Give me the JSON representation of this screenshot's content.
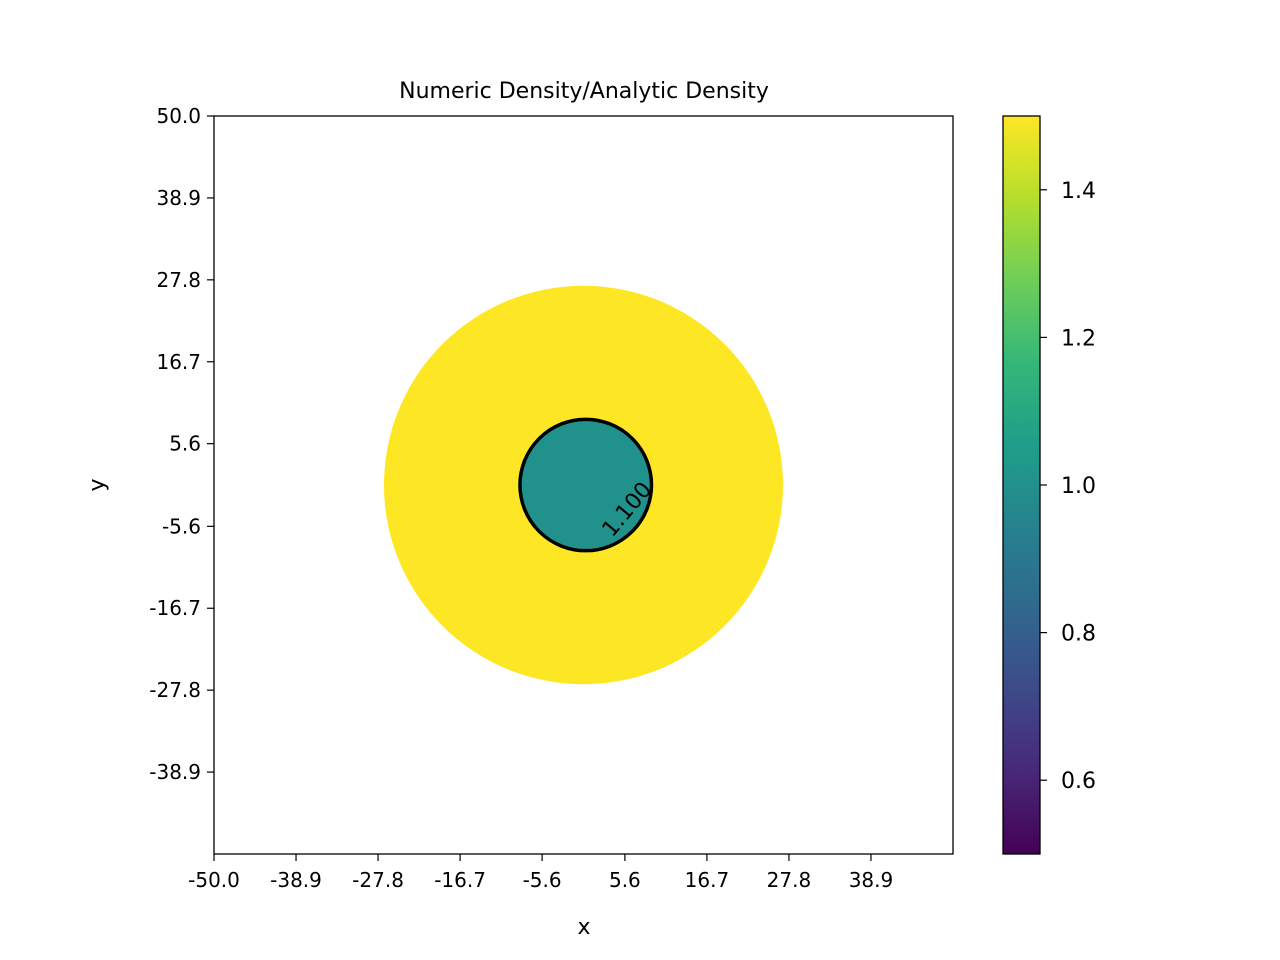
{
  "chart_data": {
    "type": "heatmap",
    "title": "Numeric Density/Analytic Density",
    "xlabel": "x",
    "ylabel": "y",
    "xlim": [
      -50.0,
      50.0
    ],
    "ylim": [
      -50.0,
      50.0
    ],
    "xticks": [
      "-50.0",
      "-38.9",
      "-27.8",
      "-16.7",
      "-5.6",
      "5.6",
      "16.7",
      "27.8",
      "38.9"
    ],
    "yticks": [
      "50.0",
      "38.9",
      "27.8",
      "16.7",
      "5.6",
      "-5.6",
      "-16.7",
      "-27.8",
      "-38.9"
    ],
    "grid": false,
    "colormap": "viridis",
    "colorbar": {
      "range": [
        0.5,
        1.5
      ],
      "ticks": [
        "0.6",
        "0.8",
        "1.0",
        "1.2",
        "1.4"
      ],
      "colors": [
        "#440154",
        "#482878",
        "#3e4a89",
        "#31688e",
        "#26828e",
        "#1f9e89",
        "#35b779",
        "#6ece58",
        "#b5de2b",
        "#fde725"
      ]
    },
    "regions": [
      {
        "shape": "disk",
        "center": [
          0.0,
          0.0
        ],
        "radius_x": 27.0,
        "radius_y": 27.0,
        "value": 1.5,
        "color": "#fde725"
      },
      {
        "shape": "disk",
        "center": [
          0.3,
          0.0
        ],
        "radius_x": 8.7,
        "radius_y": 8.7,
        "value": 1.0,
        "color": "#21918c"
      }
    ],
    "contour": {
      "level": 1.1,
      "label": "1.100",
      "center": [
        0.3,
        0.0
      ],
      "radius_x": 8.9,
      "radius_y": 8.9,
      "color": "#000000",
      "label_position": [
        6.0,
        -3.4
      ]
    }
  }
}
